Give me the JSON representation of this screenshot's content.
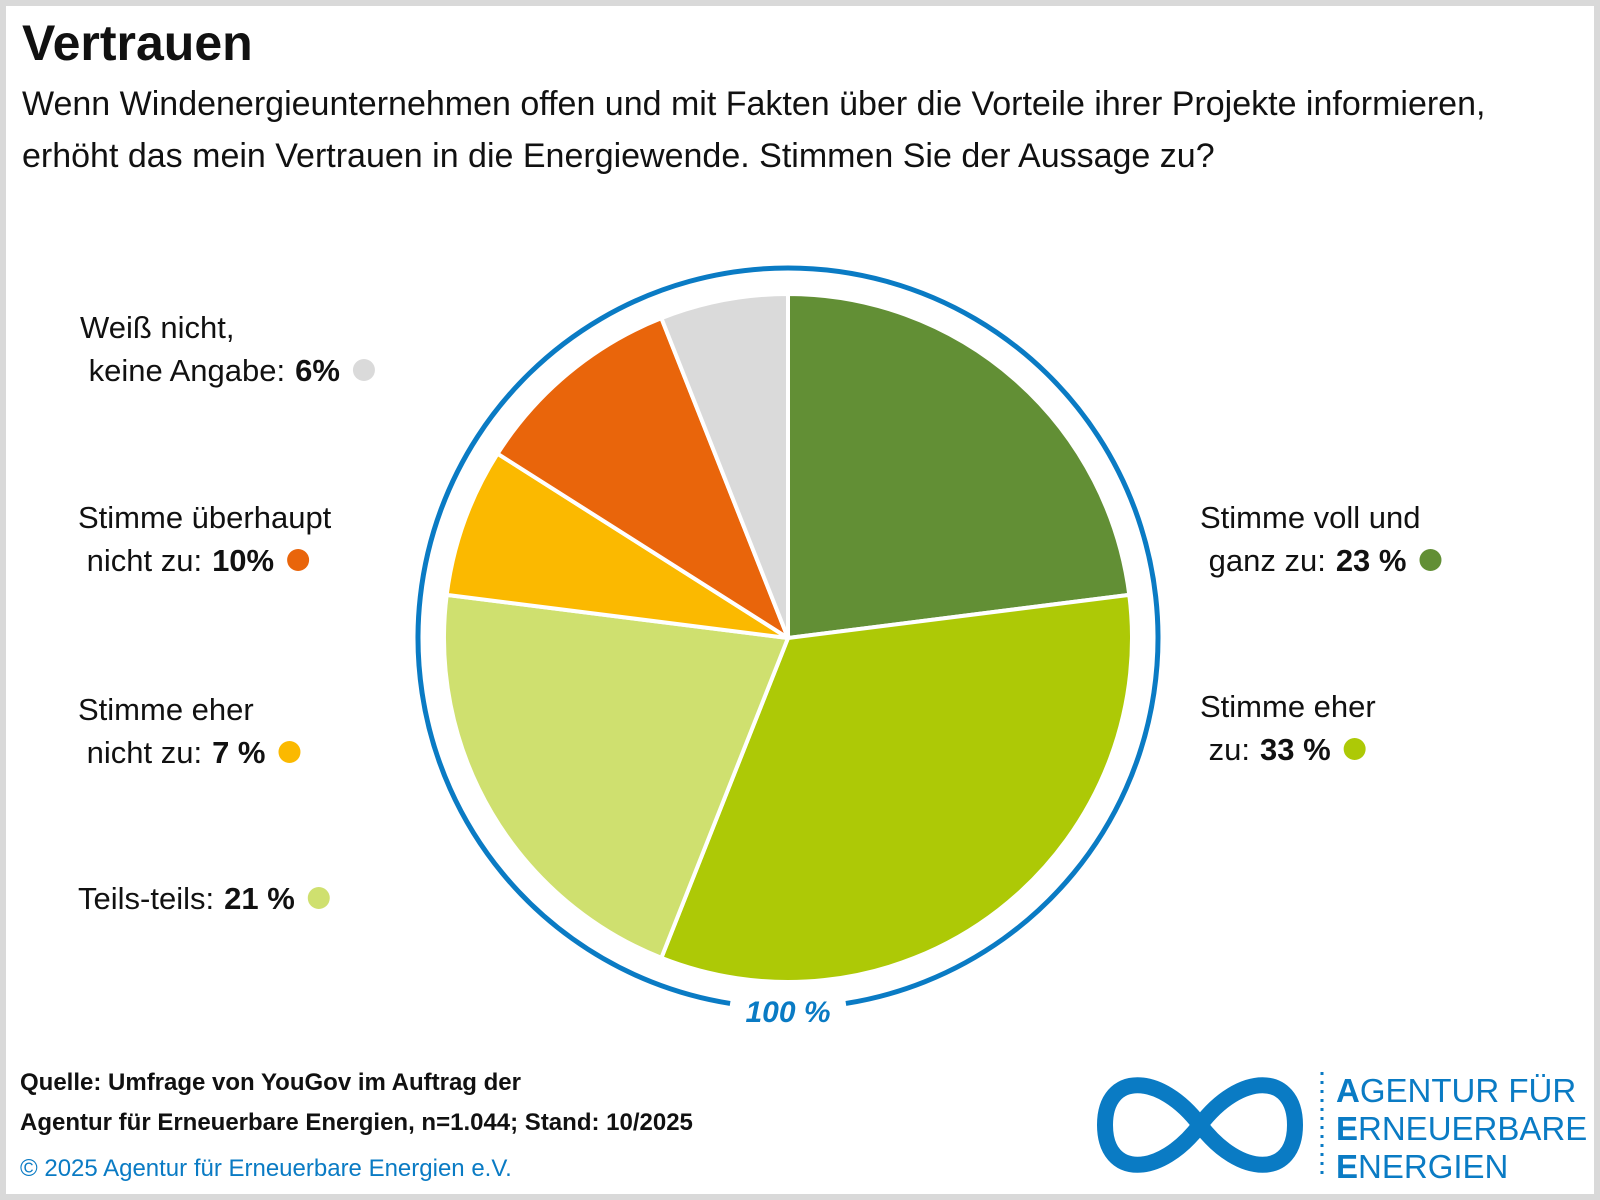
{
  "chart_data": {
    "type": "pie",
    "title": "Vertrauen",
    "subtitle": "Wenn Windenergieunternehmen offen und mit Fakten über die Vorteile ihrer Projekte informieren, erhöht das mein Vertrauen in die Energiewende. Stimmen Sie der Aussage zu?",
    "categories": [
      "Stimme voll und ganz zu:",
      "Stimme eher zu:",
      "Teils-teils:",
      "Stimme eher nicht zu:",
      "Stimme überhaupt nicht zu:",
      "Weiß nicht, keine Angabe:"
    ],
    "values": [
      23,
      33,
      21,
      7,
      10,
      6
    ],
    "value_labels": [
      "23 %",
      "33 %",
      "21 %",
      "7 %",
      "10%",
      "6%"
    ],
    "colors": [
      "#628f35",
      "#adc906",
      "#cfe06f",
      "#fbb900",
      "#e9650b",
      "#dadada"
    ],
    "total": 100,
    "total_label": "100 %",
    "ring_color": "#0a7bc4",
    "source": [
      "Quelle: Umfrage von YouGov im Auftrag der",
      "Agentur für Erneuerbare Energien, n=1.044; Stand: 10/2025"
    ],
    "copyright": "© 2025 Agentur für Erneuerbare Energien e.V.",
    "logo": [
      "AGENTUR FÜR",
      "ERNEUERBARE",
      "ENERGIEN"
    ]
  }
}
